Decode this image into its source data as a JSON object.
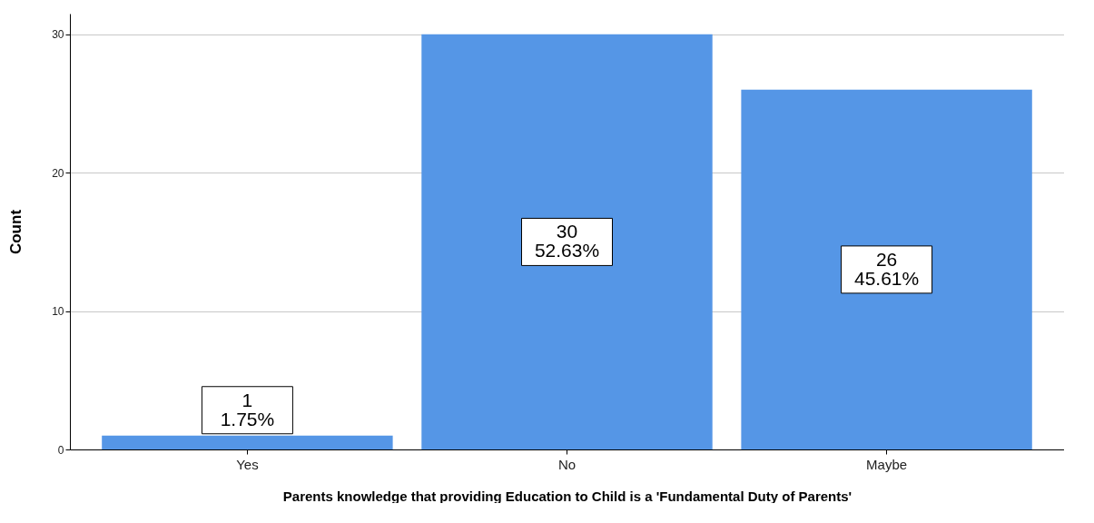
{
  "chart_data": {
    "type": "bar",
    "xlabel": "Parents knowledge that providing Education to Child is a 'Fundamental Duty of Parents'",
    "ylabel": "Count",
    "categories": [
      "Yes",
      "No",
      "Maybe"
    ],
    "values": [
      1,
      30,
      26
    ],
    "value_labels": [
      "1\n1.75%",
      "30\n52.63%",
      "26\n45.61%"
    ],
    "color": "#5596e6",
    "ylim": [
      0,
      31.5
    ],
    "yticks": [
      0,
      10,
      20,
      30
    ],
    "grid": "y"
  }
}
